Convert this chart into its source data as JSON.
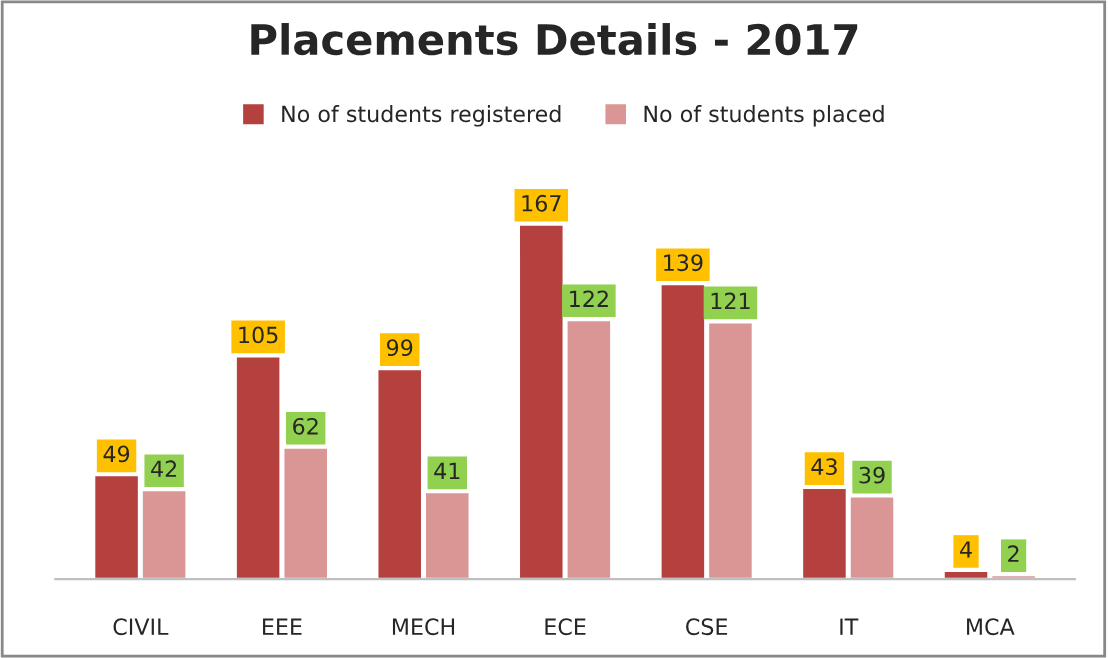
{
  "chart_data": {
    "type": "bar",
    "title": "Placements Details - 2017",
    "categories": [
      "CIVIL",
      "EEE",
      "MECH",
      "ECE",
      "CSE",
      "IT",
      "MCA"
    ],
    "series": [
      {
        "name": "No of students registered",
        "color": "#b5413e",
        "values": [
          49,
          105,
          99,
          167,
          139,
          43,
          4
        ]
      },
      {
        "name": "No of students placed",
        "color": "#d99694",
        "values": [
          42,
          62,
          41,
          122,
          121,
          39,
          2
        ]
      }
    ],
    "data_labels": true,
    "legend": "top",
    "grid": false
  }
}
